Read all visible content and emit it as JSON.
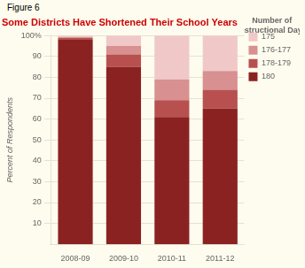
{
  "chart_data": {
    "type": "bar",
    "stacked": true,
    "title": "Some Districts Have Shortened Their School Years",
    "annotations": [
      "Figure 6"
    ],
    "ylabel": "Percent of Respondents",
    "legend_title": "Number of\nInstructional Days",
    "legend": "right",
    "categories": [
      "2008-09",
      "2009-10",
      "2010-11",
      "2011-12"
    ],
    "series": [
      {
        "name": "180",
        "color": "#8b2222",
        "values": [
          98,
          85,
          61,
          65
        ]
      },
      {
        "name": "178-179",
        "color": "#b85050",
        "values": [
          1,
          6,
          8,
          9
        ]
      },
      {
        "name": "176-177",
        "color": "#d89090",
        "values": [
          0,
          4,
          10,
          9
        ]
      },
      {
        "name": "175",
        "color": "#f0c8c8",
        "values": [
          1,
          5,
          21,
          17
        ]
      }
    ],
    "ylim": [
      0,
      100
    ],
    "yticks": [
      10,
      20,
      30,
      40,
      50,
      60,
      70,
      80,
      90,
      {
        "value": 100,
        "label": "100%"
      }
    ],
    "grid": true
  }
}
